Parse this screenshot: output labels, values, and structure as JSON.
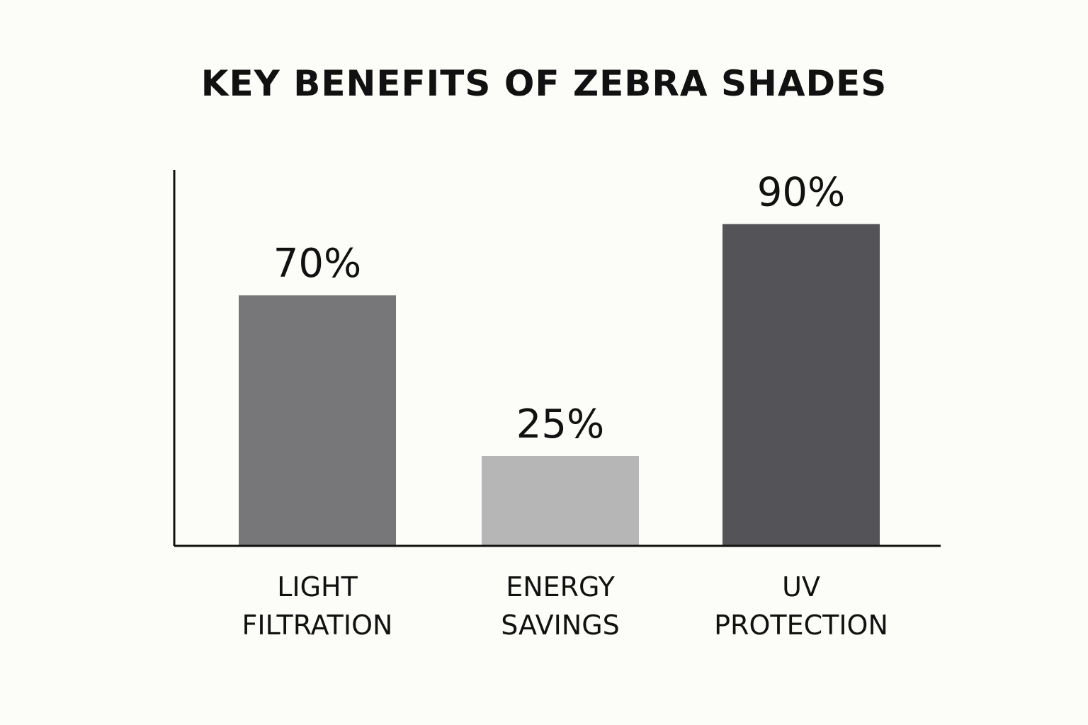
{
  "chart_data": {
    "type": "bar",
    "title": "KEY BENEFITS OF ZEBRA SHADES",
    "categories": [
      [
        "LIGHT",
        "FILTRATION"
      ],
      [
        "ENERGY",
        "SAVINGS"
      ],
      [
        "UV",
        "PROTECTION"
      ]
    ],
    "values": [
      70,
      25,
      90
    ],
    "value_labels": [
      "70%",
      "25%",
      "90%"
    ],
    "bar_colors": [
      "#777779",
      "#b6b6b6",
      "#545458"
    ],
    "xlabel": "",
    "ylabel": "",
    "ylim": [
      0,
      100
    ],
    "grid": false
  }
}
